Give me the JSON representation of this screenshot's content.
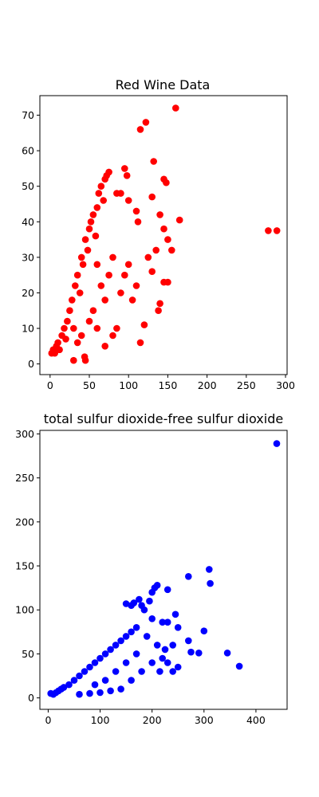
{
  "chart_data": [
    {
      "type": "scatter",
      "title": "Red Wine Data",
      "xlabel": "",
      "ylabel": "",
      "xlim": [
        -13,
        302
      ],
      "ylim": [
        -3,
        75.5
      ],
      "xticks": [
        0,
        50,
        100,
        150,
        200,
        250,
        300
      ],
      "yticks": [
        0,
        10,
        20,
        30,
        40,
        50,
        60,
        70
      ],
      "grid": false,
      "color": "#ff0000",
      "points": [
        [
          2,
          3
        ],
        [
          4,
          4
        ],
        [
          6,
          3
        ],
        [
          8,
          5
        ],
        [
          10,
          6
        ],
        [
          12,
          4
        ],
        [
          15,
          8
        ],
        [
          18,
          10
        ],
        [
          20,
          7
        ],
        [
          22,
          12
        ],
        [
          25,
          15
        ],
        [
          28,
          18
        ],
        [
          30,
          10
        ],
        [
          32,
          22
        ],
        [
          35,
          25
        ],
        [
          38,
          20
        ],
        [
          40,
          30
        ],
        [
          42,
          28
        ],
        [
          45,
          35
        ],
        [
          48,
          32
        ],
        [
          50,
          38
        ],
        [
          52,
          40
        ],
        [
          55,
          42
        ],
        [
          58,
          36
        ],
        [
          60,
          44
        ],
        [
          62,
          48
        ],
        [
          65,
          50
        ],
        [
          68,
          46
        ],
        [
          70,
          52
        ],
        [
          72,
          53
        ],
        [
          75,
          54
        ],
        [
          30,
          1
        ],
        [
          45,
          1
        ],
        [
          44,
          2
        ],
        [
          70,
          5
        ],
        [
          95,
          55
        ],
        [
          98,
          53
        ],
        [
          100,
          46
        ],
        [
          90,
          48
        ],
        [
          85,
          48
        ],
        [
          110,
          43
        ],
        [
          112,
          40
        ],
        [
          115,
          66
        ],
        [
          122,
          68
        ],
        [
          132,
          57
        ],
        [
          130,
          47
        ],
        [
          145,
          52
        ],
        [
          148,
          51
        ],
        [
          160,
          72
        ],
        [
          140,
          42
        ],
        [
          145,
          38
        ],
        [
          150,
          35
        ],
        [
          165,
          40.5
        ],
        [
          155,
          32
        ],
        [
          145,
          23
        ],
        [
          150,
          23
        ],
        [
          140,
          17
        ],
        [
          138,
          15
        ],
        [
          115,
          6
        ],
        [
          120,
          11
        ],
        [
          80,
          8
        ],
        [
          85,
          10
        ],
        [
          90,
          20
        ],
        [
          95,
          25
        ],
        [
          100,
          28
        ],
        [
          105,
          18
        ],
        [
          110,
          22
        ],
        [
          125,
          30
        ],
        [
          130,
          26
        ],
        [
          135,
          32
        ],
        [
          60,
          28
        ],
        [
          65,
          22
        ],
        [
          70,
          18
        ],
        [
          75,
          25
        ],
        [
          80,
          30
        ],
        [
          55,
          15
        ],
        [
          50,
          12
        ],
        [
          40,
          8
        ],
        [
          35,
          6
        ],
        [
          60,
          10
        ],
        [
          278,
          37.5
        ],
        [
          289,
          37.5
        ]
      ]
    },
    {
      "type": "scatter",
      "title": "total sulfur dioxide-free sulfur dioxide",
      "xlabel": "",
      "ylabel": "",
      "xlim": [
        -16,
        460
      ],
      "ylim": [
        -13,
        304
      ],
      "xticks": [
        0,
        100,
        200,
        300,
        400
      ],
      "yticks": [
        0,
        50,
        100,
        150,
        200,
        250,
        300
      ],
      "grid": false,
      "color": "#0000ff",
      "points": [
        [
          5,
          5
        ],
        [
          10,
          4
        ],
        [
          15,
          6
        ],
        [
          20,
          8
        ],
        [
          25,
          10
        ],
        [
          30,
          12
        ],
        [
          40,
          15
        ],
        [
          50,
          20
        ],
        [
          60,
          25
        ],
        [
          70,
          30
        ],
        [
          80,
          35
        ],
        [
          90,
          40
        ],
        [
          100,
          45
        ],
        [
          110,
          50
        ],
        [
          120,
          55
        ],
        [
          130,
          60
        ],
        [
          140,
          65
        ],
        [
          150,
          70
        ],
        [
          160,
          75
        ],
        [
          170,
          80
        ],
        [
          150,
          107
        ],
        [
          160,
          105
        ],
        [
          165,
          108
        ],
        [
          175,
          112
        ],
        [
          180,
          105
        ],
        [
          185,
          100
        ],
        [
          195,
          110
        ],
        [
          200,
          120
        ],
        [
          205,
          125
        ],
        [
          210,
          128
        ],
        [
          230,
          123
        ],
        [
          220,
          86
        ],
        [
          230,
          86
        ],
        [
          245,
          95
        ],
        [
          270,
          138
        ],
        [
          310,
          146
        ],
        [
          312,
          130
        ],
        [
          300,
          76
        ],
        [
          270,
          65
        ],
        [
          275,
          52
        ],
        [
          290,
          51
        ],
        [
          345,
          51
        ],
        [
          368,
          36
        ],
        [
          440,
          289
        ],
        [
          250,
          80
        ],
        [
          240,
          60
        ],
        [
          200,
          40
        ],
        [
          180,
          30
        ],
        [
          160,
          20
        ],
        [
          140,
          10
        ],
        [
          120,
          8
        ],
        [
          100,
          6
        ],
        [
          80,
          5
        ],
        [
          60,
          4
        ],
        [
          200,
          90
        ],
        [
          190,
          70
        ],
        [
          170,
          50
        ],
        [
          150,
          40
        ],
        [
          130,
          30
        ],
        [
          110,
          20
        ],
        [
          90,
          15
        ],
        [
          210,
          60
        ],
        [
          220,
          45
        ],
        [
          230,
          40
        ],
        [
          240,
          30
        ],
        [
          250,
          35
        ],
        [
          215,
          30
        ],
        [
          225,
          55
        ]
      ]
    }
  ]
}
